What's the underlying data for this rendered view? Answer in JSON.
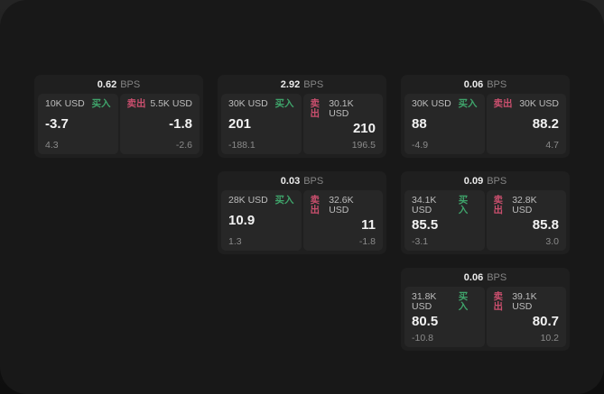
{
  "labels": {
    "bps": "BPS",
    "buy": "买入",
    "sell": "卖出"
  },
  "colors": {
    "backdrop_top": "#242424",
    "backdrop_bottom": "#0e0e0e",
    "surface": "#181818",
    "card": "#1f1f1f",
    "panel": "#272727",
    "buy_accent": "#3fa46b",
    "sell_accent": "#ca4f6e"
  },
  "cards": [
    {
      "bps": "0.62",
      "buy": {
        "amount": "10K USD",
        "price": "-3.7",
        "delta": "4.3"
      },
      "sell": {
        "amount": "5.5K USD",
        "price": "-1.8",
        "delta": "-2.6"
      }
    },
    {
      "bps": "2.92",
      "buy": {
        "amount": "30K USD",
        "price": "201",
        "delta": "-188.1"
      },
      "sell": {
        "amount": "30.1K USD",
        "price": "210",
        "delta": "196.5"
      }
    },
    {
      "bps": "0.06",
      "buy": {
        "amount": "30K USD",
        "price": "88",
        "delta": "-4.9"
      },
      "sell": {
        "amount": "30K USD",
        "price": "88.2",
        "delta": "4.7"
      }
    },
    {
      "bps": "0.03",
      "buy": {
        "amount": "28K USD",
        "price": "10.9",
        "delta": "1.3"
      },
      "sell": {
        "amount": "32.6K USD",
        "price": "11",
        "delta": "-1.8"
      }
    },
    {
      "bps": "0.09",
      "buy": {
        "amount": "34.1K USD",
        "price": "85.5",
        "delta": "-3.1"
      },
      "sell": {
        "amount": "32.8K USD",
        "price": "85.8",
        "delta": "3.0"
      }
    },
    {
      "bps": "0.06",
      "buy": {
        "amount": "31.8K USD",
        "price": "80.5",
        "delta": "-10.8"
      },
      "sell": {
        "amount": "39.1K USD",
        "price": "80.7",
        "delta": "10.2"
      }
    }
  ]
}
